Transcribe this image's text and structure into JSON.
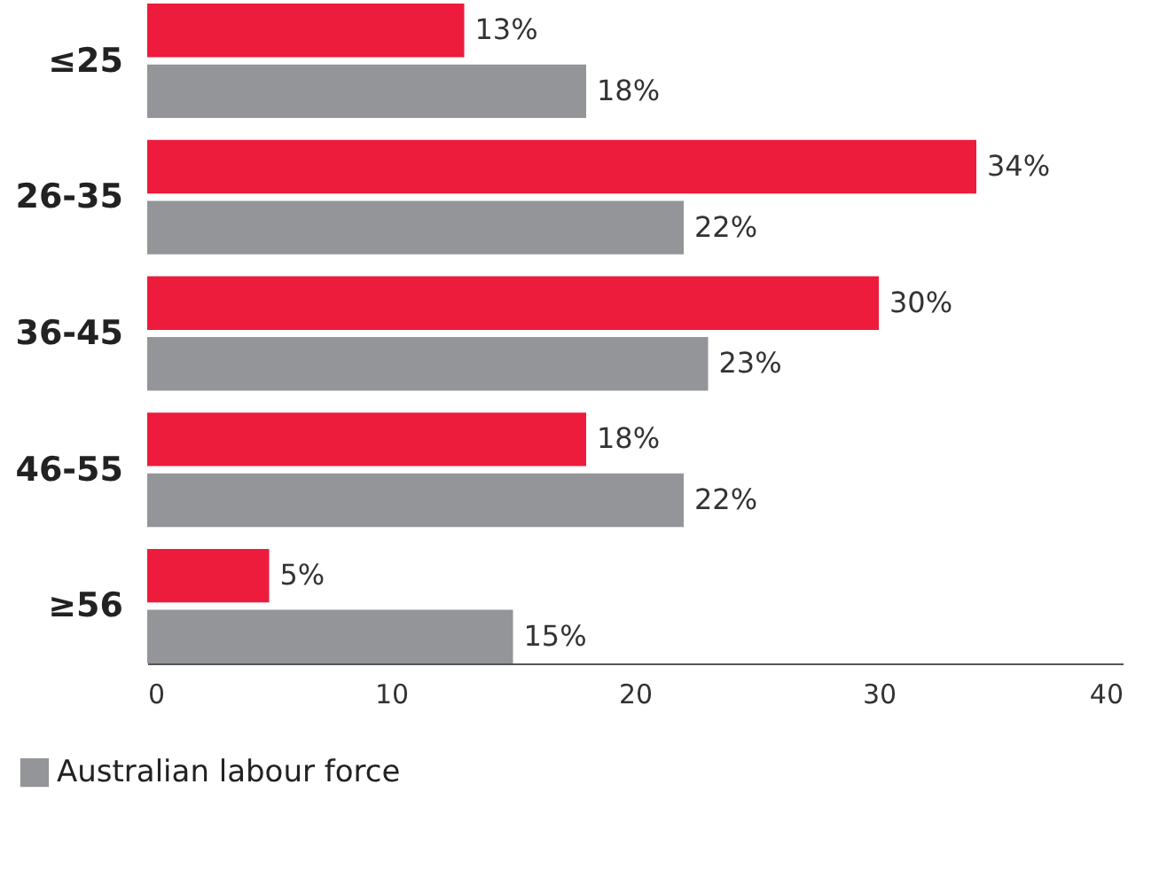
{
  "chart_data": {
    "type": "bar",
    "orientation": "horizontal",
    "categories": [
      "≤25",
      "26-35",
      "36-45",
      "46-55",
      "≥56"
    ],
    "series": [
      {
        "color": "#ed1b3c",
        "values": [
          13,
          34,
          30,
          18,
          5
        ],
        "value_labels": [
          "13%",
          "34%",
          "30%",
          "18%",
          "5%"
        ]
      },
      {
        "name": "Australian labour force",
        "color": "#939598",
        "values": [
          18,
          22,
          23,
          22,
          15
        ],
        "value_labels": [
          "18%",
          "22%",
          "23%",
          "22%",
          "15%"
        ]
      }
    ],
    "xlim": [
      0,
      40
    ],
    "xticks": [
      0,
      10,
      20,
      30,
      40
    ],
    "grid": false,
    "legend": "bottom left"
  }
}
